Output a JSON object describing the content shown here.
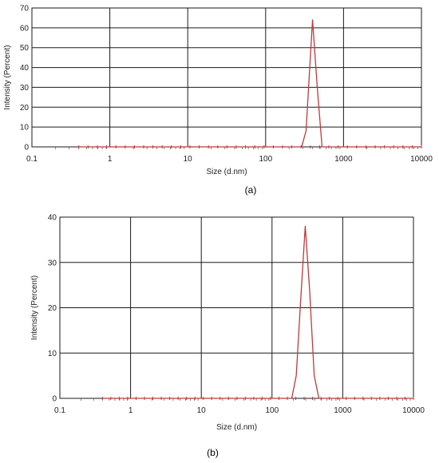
{
  "colors": {
    "grid": "#1a1a1a",
    "frame": "#1a1a1a",
    "series": "#c0393b",
    "background": "#ffffff"
  },
  "chart_data": [
    {
      "type": "line",
      "caption": "(a)",
      "xlabel": "Size (d.nm)",
      "ylabel": "Intensity (Percent)",
      "xscale": "log",
      "xlim": [
        0.1,
        10000
      ],
      "ylim": [
        0,
        70
      ],
      "xticks": [
        0.1,
        1,
        10,
        100,
        1000,
        10000
      ],
      "xtick_labels": [
        "0.1",
        "1",
        "10",
        "100",
        "1000",
        "10000"
      ],
      "yticks": [
        0,
        10,
        20,
        30,
        40,
        50,
        60,
        70
      ],
      "ytick_labels": [
        "0",
        "10",
        "20",
        "30",
        "40",
        "50",
        "60",
        "70"
      ],
      "grid": true,
      "series": [
        {
          "x": [
            0.4,
            0.5,
            0.7,
            1,
            2,
            5,
            10,
            20,
            50,
            100,
            200,
            290,
            330,
            400,
            460,
            530,
            600,
            1000,
            2000,
            5000,
            10000
          ],
          "y": [
            0,
            0,
            0,
            0,
            0,
            0,
            0,
            0,
            0,
            0,
            0,
            0,
            8,
            64,
            30,
            0,
            0,
            0,
            0,
            0,
            0
          ]
        }
      ]
    },
    {
      "type": "line",
      "caption": "(b)",
      "xlabel": "Size (d.nm)",
      "ylabel": "Intensity (Percent)",
      "xscale": "log",
      "xlim": [
        0.1,
        10000
      ],
      "ylim": [
        0,
        40
      ],
      "xticks": [
        0.1,
        1,
        10,
        100,
        1000,
        10000
      ],
      "xtick_labels": [
        "0.1",
        "1",
        "10",
        "100",
        "1000",
        "10000"
      ],
      "yticks": [
        0,
        10,
        20,
        30,
        40
      ],
      "ytick_labels": [
        "0",
        "10",
        "20",
        "30",
        "40"
      ],
      "grid": true,
      "series": [
        {
          "x": [
            0.4,
            0.5,
            0.7,
            1,
            2,
            5,
            10,
            20,
            50,
            100,
            190,
            220,
            255,
            295,
            340,
            395,
            460,
            530,
            1000,
            2000,
            5000,
            10000
          ],
          "y": [
            0,
            0,
            0,
            0,
            0,
            0,
            0,
            0,
            0,
            0,
            0,
            5,
            22,
            38,
            24,
            5,
            0,
            0,
            0,
            0,
            0,
            0
          ]
        }
      ]
    }
  ]
}
